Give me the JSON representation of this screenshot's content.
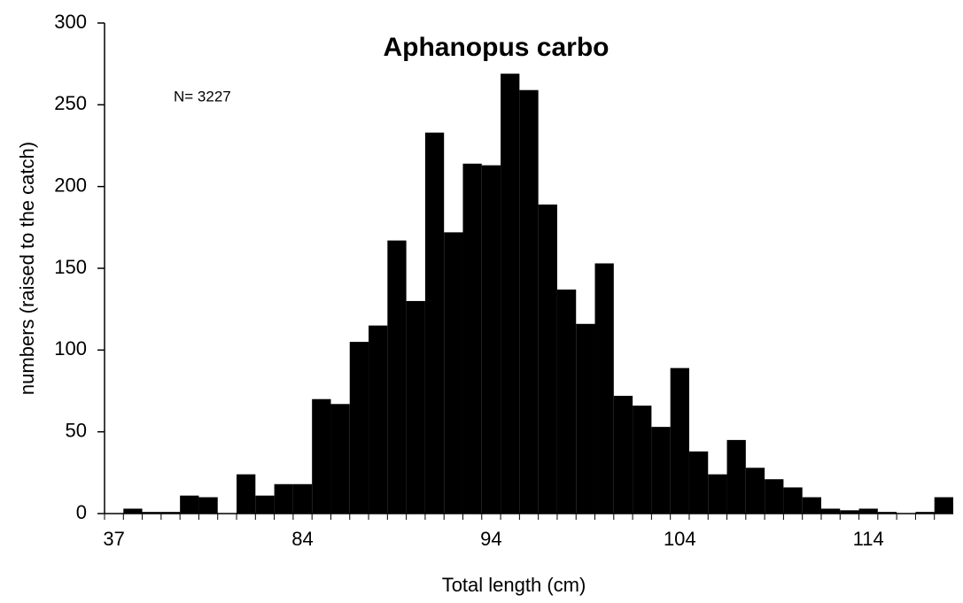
{
  "chart_data": {
    "type": "bar",
    "title": "Aphanopus carbo",
    "annotation": "N= 3227",
    "x_label": "Total length (cm)",
    "y_label": "numbers (raised to the catch)",
    "categories": [
      "37",
      null,
      null,
      null,
      null,
      null,
      null,
      null,
      null,
      null,
      "84",
      null,
      null,
      null,
      null,
      null,
      null,
      null,
      null,
      null,
      "94",
      null,
      null,
      null,
      null,
      null,
      null,
      null,
      null,
      null,
      "104",
      null,
      null,
      null,
      null,
      null,
      null,
      null,
      null,
      null,
      "114",
      null,
      null,
      null,
      null
    ],
    "values": [
      0,
      3,
      1,
      1,
      11,
      10,
      0,
      24,
      11,
      18,
      18,
      70,
      67,
      105,
      115,
      167,
      130,
      233,
      172,
      214,
      213,
      269,
      259,
      189,
      137,
      116,
      153,
      72,
      66,
      53,
      89,
      38,
      24,
      45,
      28,
      21,
      16,
      10,
      3,
      2,
      3,
      1,
      0,
      1,
      10
    ],
    "color": "#000000",
    "ylim": [
      0,
      300
    ],
    "yticks": [
      0,
      50,
      100,
      150,
      200,
      250,
      300
    ],
    "grid": false
  }
}
